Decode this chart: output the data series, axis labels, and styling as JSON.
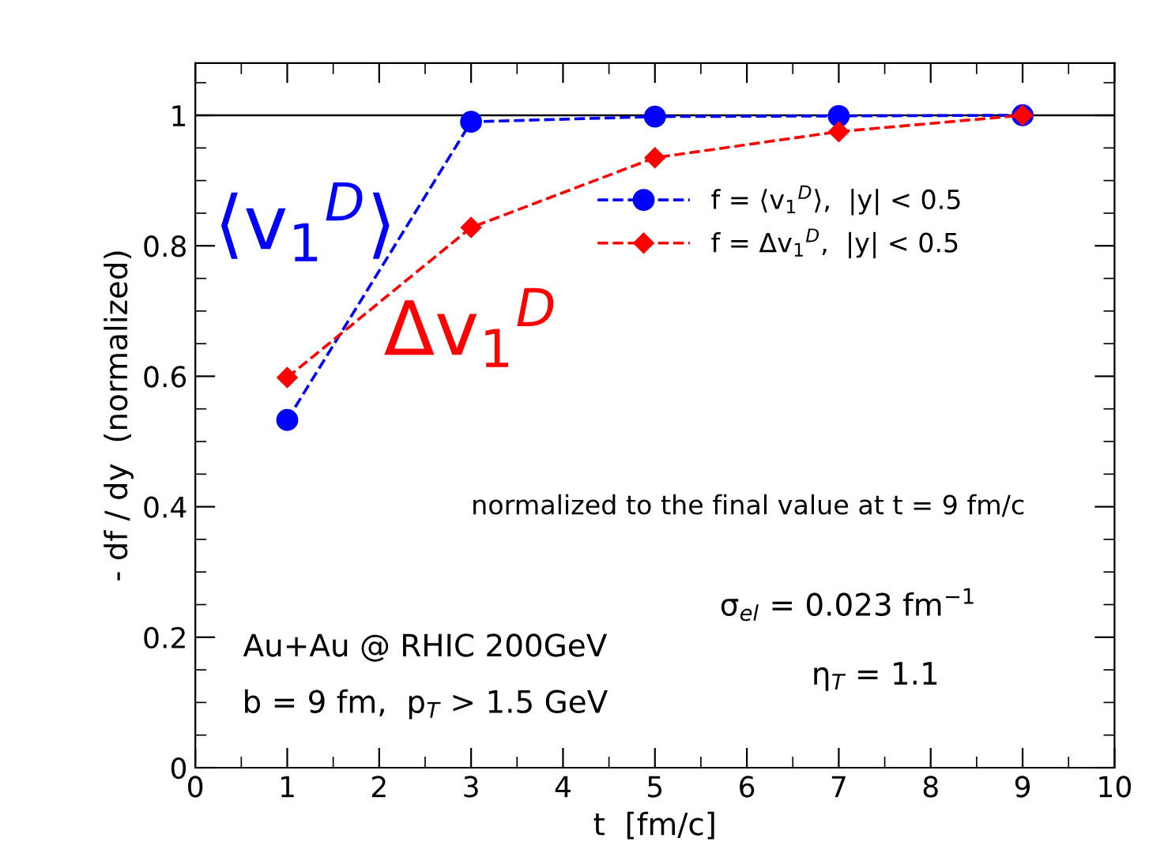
{
  "chart_data": {
    "type": "line",
    "xlabel": "t  [fm/c]",
    "ylabel": "- df / dy  (normalized)",
    "x": [
      1,
      3,
      5,
      7,
      9
    ],
    "series": [
      {
        "name": "f = ⟨v$_{1}$$^{D}$⟩,  |y| < 0.5",
        "color": "#0000ff",
        "marker": "circle",
        "values": [
          0.533,
          0.99,
          0.998,
          0.999,
          1.0
        ]
      },
      {
        "name": "f = Δv$_{1}$$^{D}$,  |y| < 0.5",
        "color": "#ff0000",
        "marker": "diamond",
        "values": [
          0.598,
          0.828,
          0.935,
          0.975,
          1.0
        ]
      }
    ],
    "line_style": "dashed",
    "xlim": [
      0,
      10
    ],
    "ylim": [
      0,
      1.08
    ],
    "xticks": [
      0,
      1,
      2,
      3,
      4,
      5,
      6,
      7,
      8,
      9,
      10
    ],
    "yticks": [
      0,
      0.2,
      0.4,
      0.6,
      0.8,
      1
    ],
    "ref_lines": [
      {
        "axis": "y",
        "value": 1,
        "color": "#000000"
      }
    ],
    "legend": "top right",
    "grid": false,
    "annotations": [
      "⟨v$_{1}$$^{D}$⟩",
      "Δv$_{1}$$^{D}$",
      "normalized to the final value at t = 9 fm/c",
      "σ$_{el}$ = 0.023 fm$^{−1}$",
      "η$_{T}$ = 1.1",
      "Au+Au @ RHIC 200GeV",
      "b = 9 fm,  p$_{T}$ > 1.5 GeV"
    ]
  }
}
